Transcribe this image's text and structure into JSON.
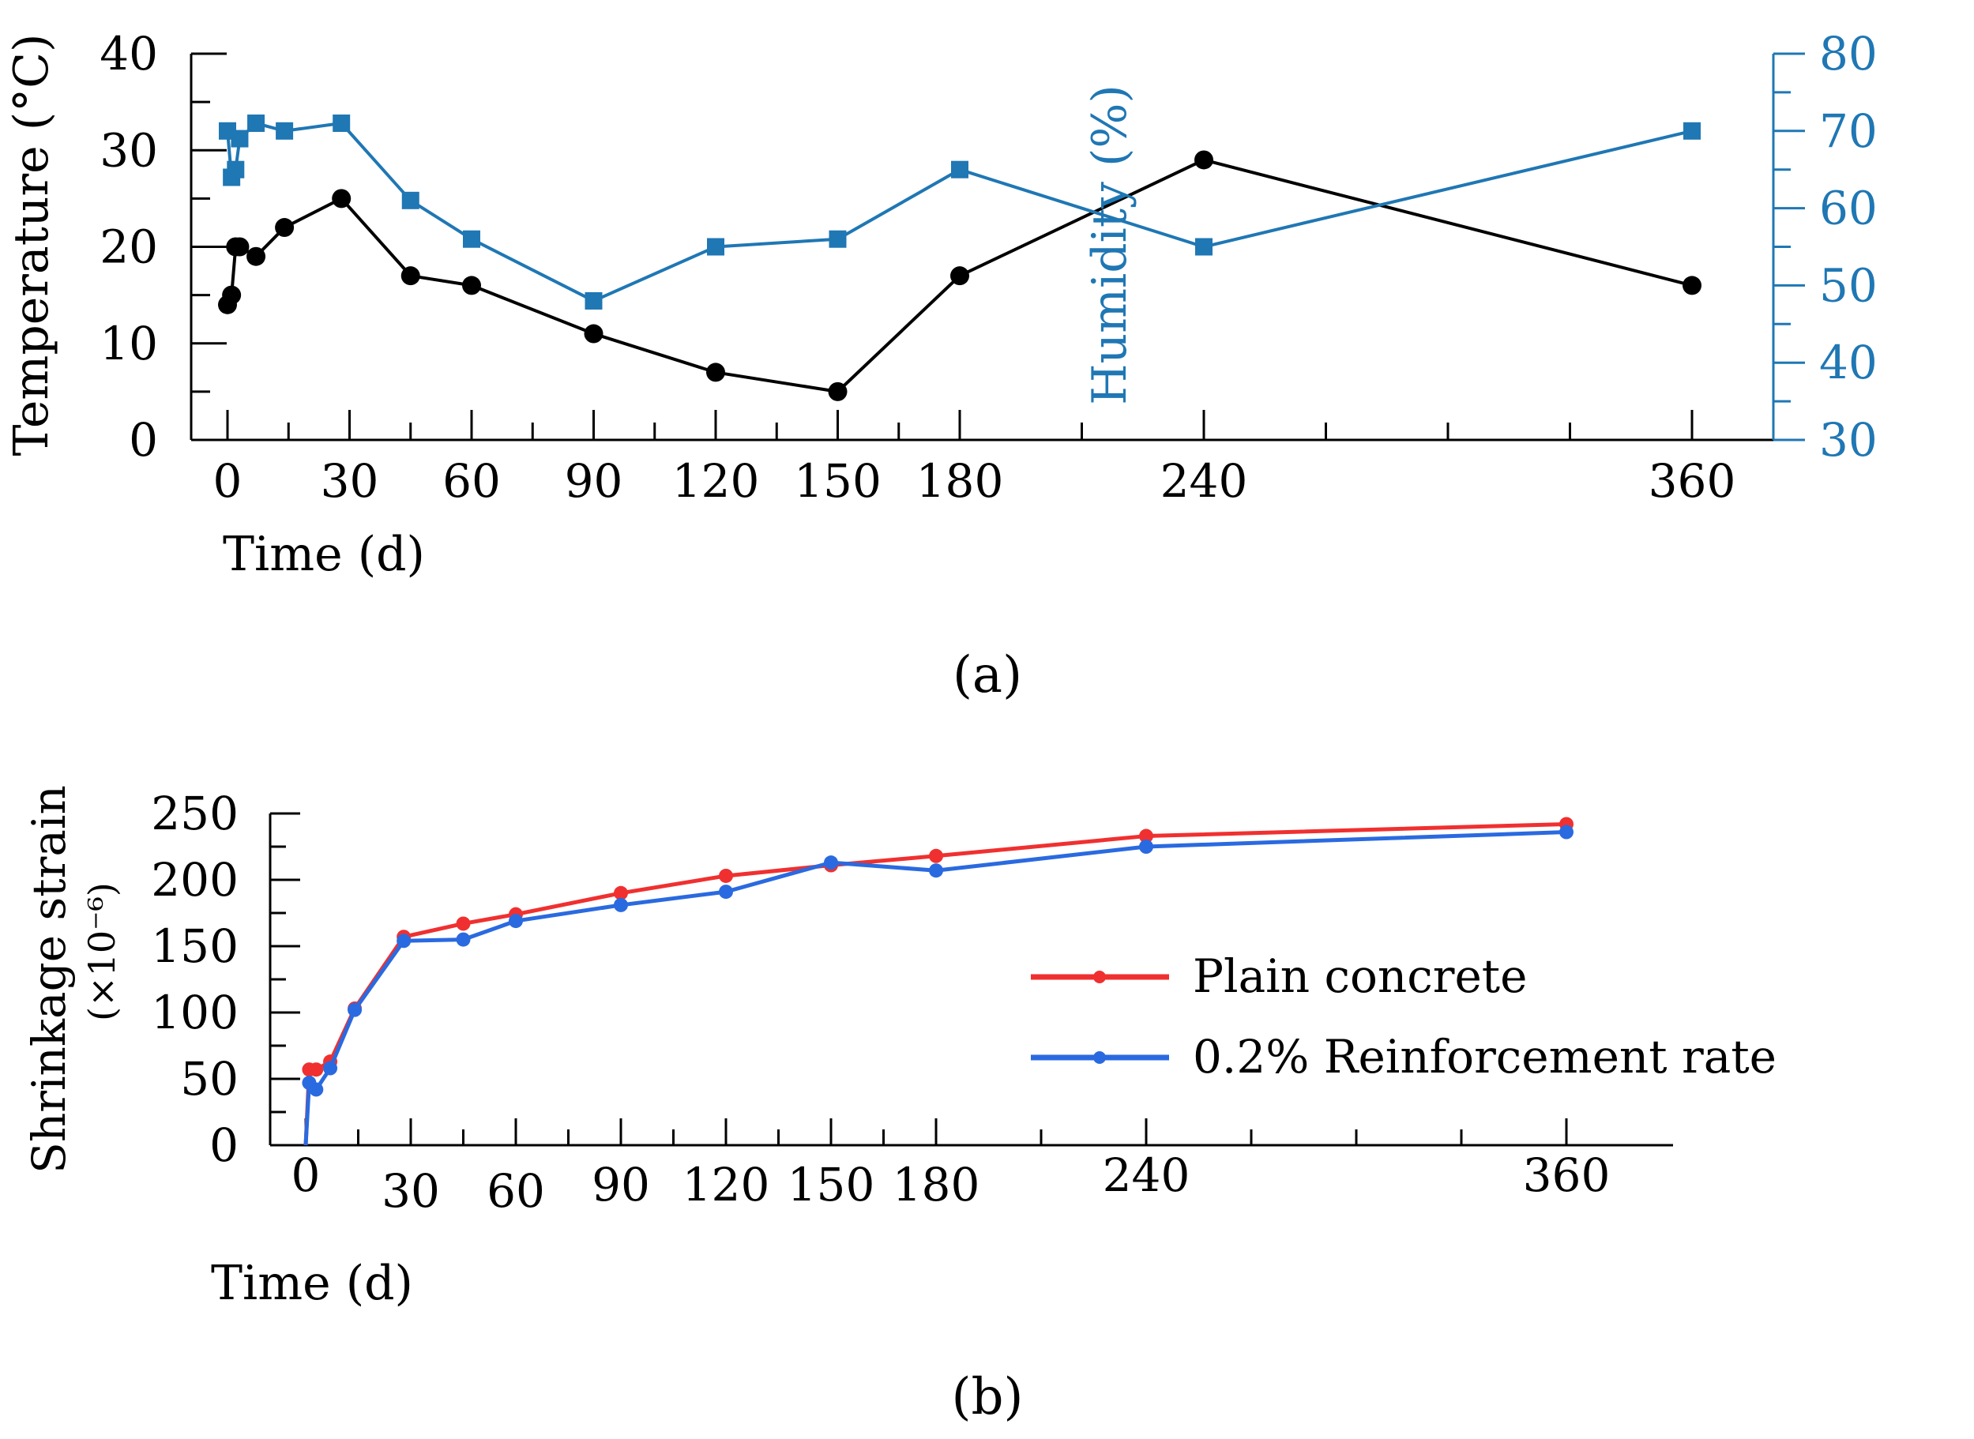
{
  "chart_data": [
    {
      "type": "line",
      "panel_label": "(a)",
      "xlabel": "Time (d)",
      "ylabel_left": "Temperature (°C)",
      "ylabel_right": "Humidity (%)",
      "xlim": [
        -5,
        380
      ],
      "ylim_left": [
        0,
        40
      ],
      "ylim_right": [
        30,
        80
      ],
      "x_ticks": [
        0,
        30,
        60,
        90,
        120,
        150,
        180,
        240,
        360
      ],
      "x_minor_ticks": [
        210,
        270,
        300,
        330
      ],
      "y_ticks_left": [
        0,
        10,
        20,
        30,
        40
      ],
      "y_ticks_right": [
        30,
        40,
        50,
        60,
        70,
        80
      ],
      "series": [
        {
          "name": "Temperature",
          "axis": "left",
          "color": "#000000",
          "marker": "circle",
          "x": [
            0,
            1,
            2,
            3,
            7,
            14,
            28,
            45,
            60,
            90,
            120,
            150,
            180,
            240,
            360
          ],
          "y": [
            14,
            15,
            20,
            20,
            19,
            22,
            25,
            17,
            16,
            11,
            7,
            5,
            17,
            29,
            16
          ]
        },
        {
          "name": "Humidity",
          "axis": "right",
          "color": "#1f77b4",
          "marker": "square",
          "x": [
            0,
            1,
            2,
            3,
            7,
            14,
            28,
            45,
            60,
            90,
            120,
            150,
            180,
            240,
            360
          ],
          "y": [
            70,
            64,
            65,
            69,
            71,
            70,
            71,
            61,
            56,
            48,
            55,
            56,
            65,
            55,
            70
          ]
        }
      ]
    },
    {
      "type": "line",
      "panel_label": "(b)",
      "xlabel": "Time (d)",
      "ylabel": "Shrinkage strain",
      "ylabel_unit": "(×10⁻⁶)",
      "xlim": [
        0,
        375
      ],
      "ylim": [
        0,
        250
      ],
      "x_ticks": [
        0,
        30,
        60,
        90,
        120,
        150,
        180,
        240,
        360
      ],
      "x_minor_ticks": [
        210,
        270,
        300,
        330
      ],
      "y_ticks": [
        0,
        50,
        100,
        150,
        200,
        250
      ],
      "legend_position": "center-right",
      "series": [
        {
          "name": "Plain concrete",
          "color": "#f03030",
          "marker": "circle",
          "x": [
            0,
            1,
            3,
            7,
            14,
            28,
            45,
            60,
            90,
            120,
            150,
            180,
            240,
            360
          ],
          "y": [
            0,
            57,
            57,
            63,
            103,
            157,
            167,
            174,
            190,
            203,
            211,
            218,
            233,
            242
          ]
        },
        {
          "name": "0.2% Reinforcement rate",
          "color": "#2a6ae0",
          "marker": "circle",
          "x": [
            0,
            1,
            3,
            7,
            14,
            28,
            45,
            60,
            90,
            120,
            150,
            180,
            240,
            360
          ],
          "y": [
            0,
            47,
            42,
            58,
            102,
            154,
            155,
            169,
            181,
            191,
            213,
            207,
            225,
            236
          ]
        }
      ]
    }
  ]
}
